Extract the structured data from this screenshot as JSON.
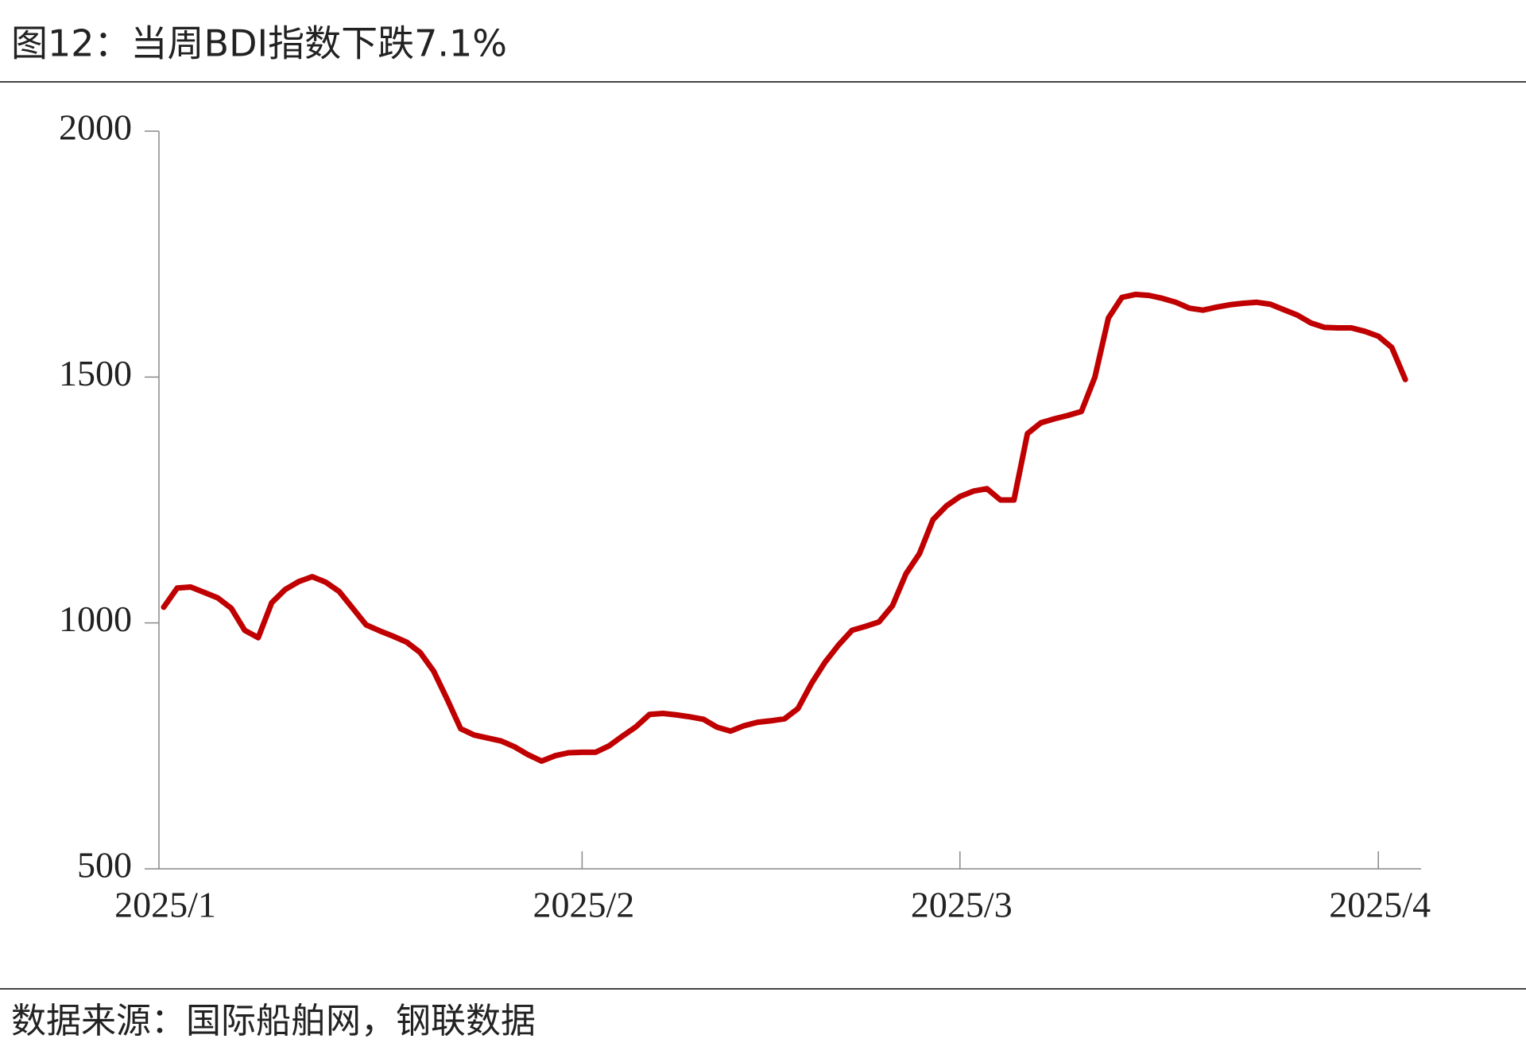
{
  "chart_data": {
    "type": "line",
    "title": "图12：当周BDI指数下跌7.1%",
    "source": "数据来源：国际船舶网，钢联数据",
    "categories": [
      "2025/1",
      null,
      null,
      null,
      null,
      null,
      null,
      null,
      null,
      null,
      null,
      null,
      null,
      null,
      null,
      null,
      null,
      null,
      null,
      null,
      null,
      null,
      null,
      null,
      null,
      null,
      null,
      null,
      null,
      null,
      null,
      "2025/2",
      null,
      null,
      null,
      null,
      null,
      null,
      null,
      null,
      null,
      null,
      null,
      null,
      null,
      null,
      null,
      null,
      null,
      null,
      null,
      null,
      null,
      null,
      null,
      null,
      null,
      null,
      null,
      "2025/3",
      null,
      null,
      null,
      null,
      null,
      null,
      null,
      null,
      null,
      null,
      null,
      null,
      null,
      null,
      null,
      null,
      null,
      null,
      null,
      null,
      null,
      null,
      null,
      null,
      null,
      null,
      null,
      null,
      null,
      null,
      "2025/4",
      null,
      null
    ],
    "series": [
      {
        "name": "BDI",
        "color": "#c00000",
        "values": [
          1032,
          1071,
          1073,
          1062,
          1051,
          1030,
          985,
          970,
          1041,
          1068,
          1084,
          1094,
          1083,
          1064,
          1030,
          996,
          984,
          973,
          961,
          940,
          902,
          845,
          785,
          772,
          766,
          760,
          748,
          732,
          719,
          730,
          736,
          737,
          737,
          750,
          770,
          789,
          814,
          816,
          813,
          809,
          804,
          788,
          780,
          791,
          798,
          801,
          805,
          826,
          877,
          920,
          955,
          985,
          993,
          1002,
          1035,
          1100,
          1141,
          1210,
          1238,
          1257,
          1268,
          1273,
          1250,
          1250,
          1385,
          1407,
          1415,
          1422,
          1430,
          1500,
          1620,
          1662,
          1668,
          1666,
          1660,
          1652,
          1640,
          1636,
          1642,
          1647,
          1650,
          1652,
          1648,
          1637,
          1626,
          1610,
          1601,
          1600,
          1600,
          1593,
          1583,
          1560,
          1495
        ]
      }
    ],
    "ylim": [
      500,
      2000
    ],
    "yticks": [
      500,
      1000,
      1500,
      2000
    ]
  }
}
